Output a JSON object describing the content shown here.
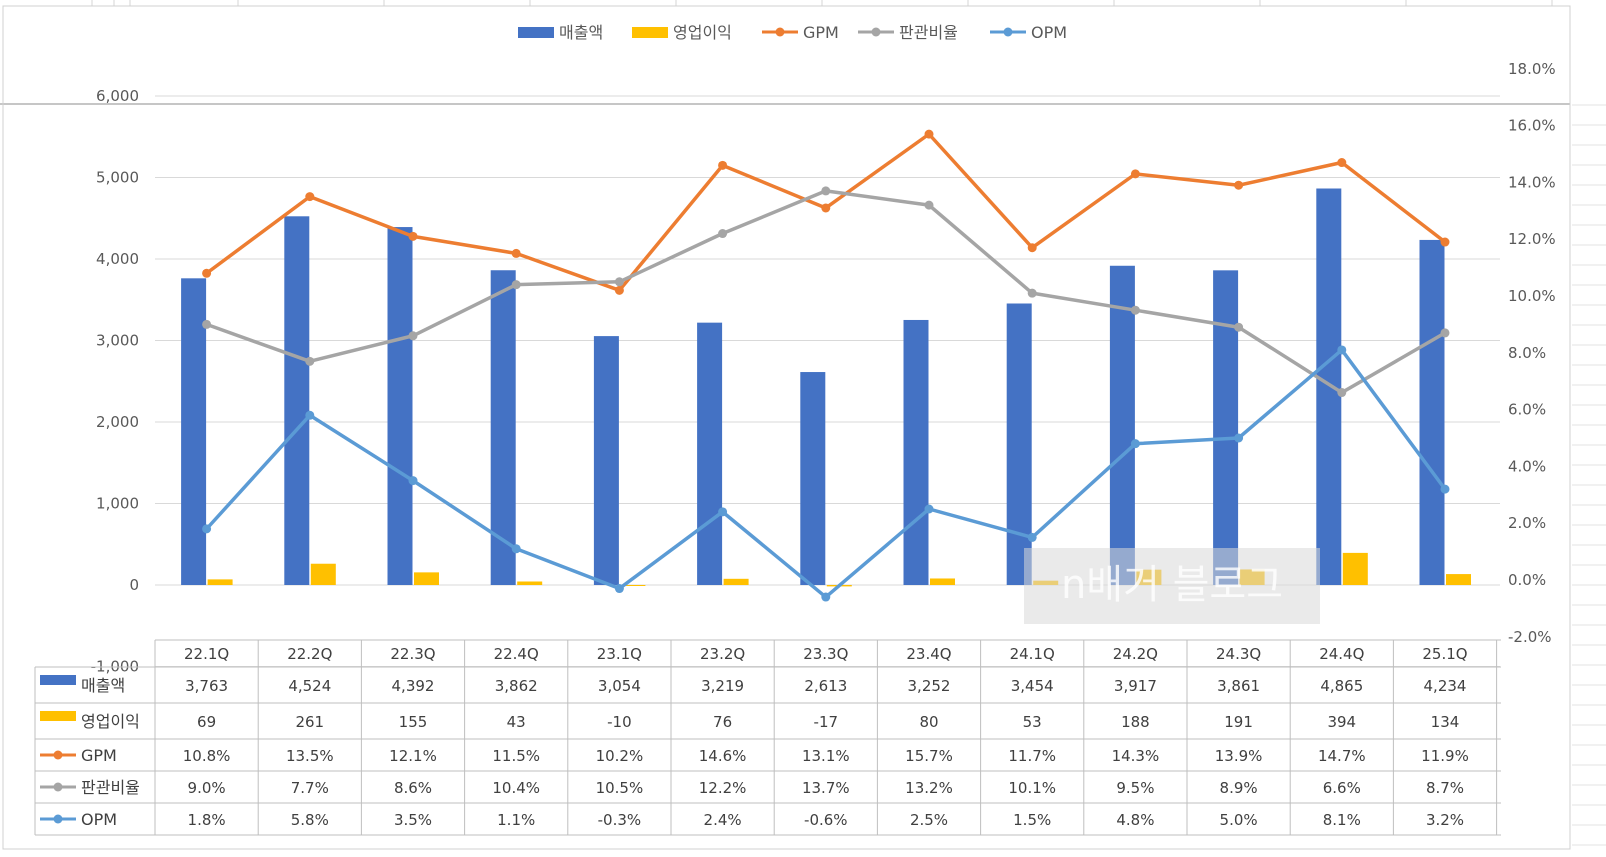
{
  "chart_data": {
    "type": "bar",
    "categories": [
      "22.1Q",
      "22.2Q",
      "22.3Q",
      "22.4Q",
      "23.1Q",
      "23.2Q",
      "23.3Q",
      "23.4Q",
      "24.1Q",
      "24.2Q",
      "24.3Q",
      "24.4Q",
      "25.1Q"
    ],
    "series": [
      {
        "name": "매출액",
        "type": "bar",
        "axis": "left",
        "color": "#4472C4",
        "values": [
          3763,
          4524,
          4392,
          3862,
          3054,
          3219,
          2613,
          3252,
          3454,
          3917,
          3861,
          4865,
          4234
        ],
        "labels": [
          "3,763",
          "4,524",
          "4,392",
          "3,862",
          "3,054",
          "3,219",
          "2,613",
          "3,252",
          "3,454",
          "3,917",
          "3,861",
          "4,865",
          "4,234"
        ]
      },
      {
        "name": "영업이익",
        "type": "bar",
        "axis": "left",
        "color": "#FFC000",
        "values": [
          69,
          261,
          155,
          43,
          -10,
          76,
          -17,
          80,
          53,
          188,
          191,
          394,
          134
        ],
        "labels": [
          "69",
          "261",
          "155",
          "43",
          "-10",
          "76",
          "-17",
          "80",
          "53",
          "188",
          "191",
          "394",
          "134"
        ]
      },
      {
        "name": "GPM",
        "type": "line",
        "axis": "right",
        "color": "#ED7D31",
        "values": [
          10.8,
          13.5,
          12.1,
          11.5,
          10.2,
          14.6,
          13.1,
          15.7,
          11.7,
          14.3,
          13.9,
          14.7,
          11.9
        ],
        "labels": [
          "10.8%",
          "13.5%",
          "12.1%",
          "11.5%",
          "10.2%",
          "14.6%",
          "13.1%",
          "15.7%",
          "11.7%",
          "14.3%",
          "13.9%",
          "14.7%",
          "11.9%"
        ]
      },
      {
        "name": "판관비율",
        "type": "line",
        "axis": "right",
        "color": "#A5A5A5",
        "values": [
          9.0,
          7.7,
          8.6,
          10.4,
          10.5,
          12.2,
          13.7,
          13.2,
          10.1,
          9.5,
          8.9,
          6.6,
          8.7
        ],
        "labels": [
          "9.0%",
          "7.7%",
          "8.6%",
          "10.4%",
          "10.5%",
          "12.2%",
          "13.7%",
          "13.2%",
          "10.1%",
          "9.5%",
          "8.9%",
          "6.6%",
          "8.7%"
        ]
      },
      {
        "name": "OPM",
        "type": "line",
        "axis": "right",
        "color": "#5B9BD5",
        "values": [
          1.8,
          5.8,
          3.5,
          1.1,
          -0.3,
          2.4,
          -0.6,
          2.5,
          1.5,
          4.8,
          5.0,
          8.1,
          3.2
        ],
        "labels": [
          "1.8%",
          "5.8%",
          "3.5%",
          "1.1%",
          "-0.3%",
          "2.4%",
          "-0.6%",
          "2.5%",
          "1.5%",
          "4.8%",
          "5.0%",
          "8.1%",
          "3.2%"
        ]
      }
    ],
    "y_left": {
      "min": -1000,
      "max": 6000,
      "ticks": [
        6000,
        5000,
        4000,
        3000,
        2000,
        1000,
        0,
        -1000
      ],
      "tick_labels": [
        "6,000",
        "5,000",
        "4,000",
        "3,000",
        "2,000",
        "1,000",
        "0",
        "-1,000"
      ]
    },
    "y_right": {
      "min": -2,
      "max": 18,
      "ticks": [
        18,
        16,
        14,
        12,
        10,
        8,
        6,
        4,
        2,
        0,
        -2
      ],
      "tick_labels": [
        "18.0%",
        "16.0%",
        "14.0%",
        "12.0%",
        "10.0%",
        "8.0%",
        "6.0%",
        "4.0%",
        "2.0%",
        "0.0%",
        "-2.0%"
      ]
    },
    "grid": true,
    "legend_position": "top-center",
    "data_table": true
  },
  "watermark_text": "n배거 블로그"
}
